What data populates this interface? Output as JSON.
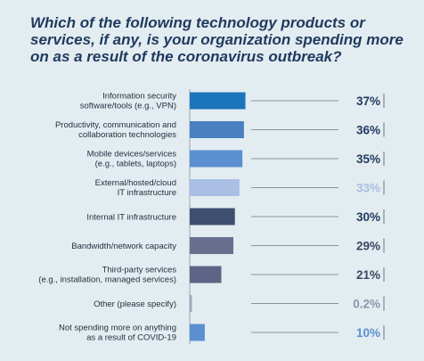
{
  "title": "Which of the following technology products or services, if any, is your organization spending more on as a result of the coronavirus outbreak?",
  "chart_data": {
    "type": "bar",
    "orientation": "horizontal",
    "categories": [
      [
        "Information security",
        "software/tools (e.g., VPN)"
      ],
      [
        "Productivity, communication and",
        "collaboration technologies"
      ],
      [
        "Mobile devices/services",
        "(e.g., tablets, laptops)"
      ],
      [
        "External/hosted/cloud",
        "IT infrastructure"
      ],
      [
        "Internal IT infrastructure"
      ],
      [
        "Bandwidth/network capacity"
      ],
      [
        "Third-party services",
        "(e.g., installation, managed services)"
      ],
      [
        "Other (please specify)"
      ],
      [
        "Not spending more on anything",
        "as a result of COVID-19"
      ]
    ],
    "values": [
      37,
      36,
      35,
      33,
      30,
      29,
      21,
      0.2,
      10
    ],
    "value_labels": [
      "37%",
      "36%",
      "35%",
      "33%",
      "30%",
      "29%",
      "21%",
      "0.2%",
      "10%"
    ],
    "colors": [
      "#1b75bc",
      "#4a7fc1",
      "#5b8fd0",
      "#a9bfe3",
      "#3f4f70",
      "#69708f",
      "#5e6485",
      "#a3a8bb",
      "#5b8fd0"
    ],
    "value_colors": [
      "#1f3a5f",
      "#1f3a5f",
      "#1f3a5f",
      "#a9bfe3",
      "#1f3a5f",
      "#3a4660",
      "#3a4660",
      "#8f95aa",
      "#5b8fd0"
    ],
    "xlim": [
      0,
      40
    ],
    "grid": false,
    "legend": "none"
  }
}
